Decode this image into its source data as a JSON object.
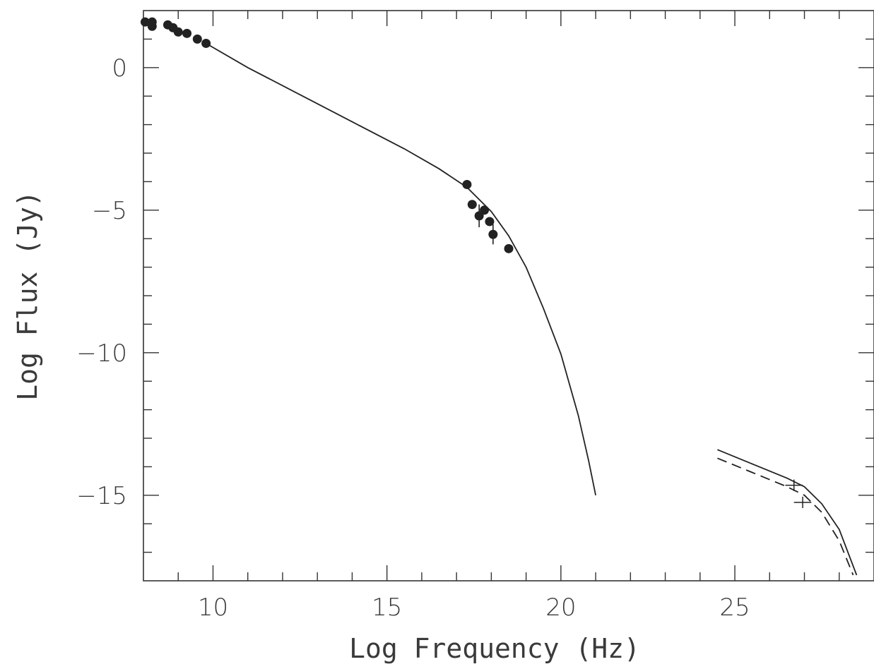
{
  "chart_data": {
    "type": "scatter",
    "xlabel": "Log Frequency (Hz)",
    "ylabel": "Log Flux (Jy)",
    "xlim": [
      8.0,
      29.0
    ],
    "ylim": [
      -18.0,
      2.0
    ],
    "x_major_ticks": [
      {
        "value": 10,
        "label": "10"
      },
      {
        "value": 15,
        "label": "15"
      },
      {
        "value": 20,
        "label": "20"
      },
      {
        "value": 25,
        "label": "25"
      }
    ],
    "y_major_ticks": [
      {
        "value": 0,
        "label": "0"
      },
      {
        "value": -5,
        "label": "−5"
      },
      {
        "value": -10,
        "label": "−10"
      },
      {
        "value": -15,
        "label": "−15"
      }
    ],
    "x_minor_step": 0.5,
    "y_minor_step": 1,
    "grid": false,
    "series": [
      {
        "kind": "points",
        "points": [
          {
            "x": 8.05,
            "y": 1.6
          },
          {
            "x": 8.25,
            "y": 1.6
          },
          {
            "x": 8.25,
            "y": 1.45
          },
          {
            "x": 8.7,
            "y": 1.5
          },
          {
            "x": 8.85,
            "y": 1.4
          },
          {
            "x": 9.0,
            "y": 1.25
          },
          {
            "x": 9.25,
            "y": 1.2
          },
          {
            "x": 9.55,
            "y": 1.0
          },
          {
            "x": 9.8,
            "y": 0.85
          },
          {
            "x": 17.3,
            "y": -4.1
          },
          {
            "x": 17.45,
            "y": -4.8
          },
          {
            "x": 17.65,
            "y": -5.2,
            "yerr": 0.4
          },
          {
            "x": 17.8,
            "y": -5.0
          },
          {
            "x": 17.95,
            "y": -5.4
          },
          {
            "x": 18.05,
            "y": -5.85,
            "yerr": 0.35
          },
          {
            "x": 18.5,
            "y": -6.35
          }
        ]
      },
      {
        "kind": "line",
        "dash": "solid",
        "points": [
          [
            9.8,
            0.85
          ],
          [
            11.0,
            0.0
          ],
          [
            12.5,
            -0.95
          ],
          [
            14.0,
            -1.9
          ],
          [
            15.5,
            -2.85
          ],
          [
            16.5,
            -3.55
          ],
          [
            17.3,
            -4.2
          ],
          [
            18.0,
            -5.05
          ],
          [
            18.5,
            -5.9
          ],
          [
            19.0,
            -7.0
          ],
          [
            19.5,
            -8.45
          ],
          [
            20.0,
            -10.05
          ],
          [
            20.5,
            -12.2
          ],
          [
            20.8,
            -13.8
          ],
          [
            21.0,
            -15.0
          ]
        ]
      },
      {
        "kind": "line",
        "dash": "solid",
        "points": [
          [
            24.5,
            -13.4
          ],
          [
            25.5,
            -13.9
          ],
          [
            26.5,
            -14.4
          ],
          [
            27.0,
            -14.7
          ],
          [
            27.5,
            -15.3
          ],
          [
            28.0,
            -16.2
          ],
          [
            28.5,
            -17.8
          ]
        ]
      },
      {
        "kind": "line",
        "dash": "dashed",
        "points": [
          [
            24.5,
            -13.7
          ],
          [
            25.5,
            -14.2
          ],
          [
            26.5,
            -14.7
          ],
          [
            27.0,
            -15.0
          ],
          [
            27.5,
            -15.6
          ],
          [
            28.0,
            -16.6
          ],
          [
            28.4,
            -17.8
          ]
        ]
      },
      {
        "kind": "crosses",
        "points": [
          {
            "x": 26.7,
            "y": -14.65,
            "xerr": 0.25,
            "yerr": 0.2
          },
          {
            "x": 26.95,
            "y": -15.25,
            "xerr": 0.25,
            "yerr": 0.2
          }
        ]
      }
    ]
  },
  "colors": {
    "ink": "#222222",
    "frame": "#333333",
    "text": "#3a3a3a"
  }
}
